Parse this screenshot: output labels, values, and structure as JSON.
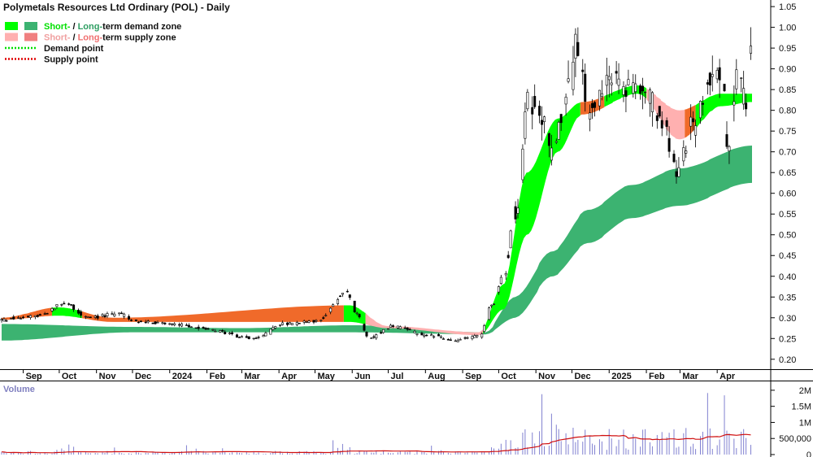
{
  "chart_data": {
    "type": "candlestick",
    "title": "Polymetals Resources Ltd Ordinary (POL) - Daily",
    "legend": {
      "placement": "top-left",
      "items": [
        {
          "parts": [
            {
              "text": "Short-",
              "color": "#00e000"
            },
            {
              "text": " / ",
              "color": "#111111"
            },
            {
              "text": "Long-",
              "color": "#2e9e62"
            },
            {
              "text": "term demand zone",
              "color": "#111111"
            }
          ],
          "swatches": [
            "#00ff00",
            "#3cb371"
          ]
        },
        {
          "parts": [
            {
              "text": "Short-",
              "color": "#f0a0a0"
            },
            {
              "text": " / ",
              "color": "#111111"
            },
            {
              "text": "Long-",
              "color": "#f07070"
            },
            {
              "text": "term supply zone",
              "color": "#111111"
            }
          ],
          "swatches": [
            "#ffb0b0",
            "#f08080"
          ]
        },
        {
          "parts": [
            {
              "text": "Demand point",
              "color": "#111111"
            }
          ],
          "line_color": "#00e000"
        },
        {
          "parts": [
            {
              "text": "Supply point",
              "color": "#111111"
            }
          ],
          "line_color": "#e00000"
        }
      ]
    },
    "price_axis": {
      "position": "right",
      "range": [
        0.18,
        1.06
      ],
      "ticks": [
        "0.20",
        "0.25",
        "0.30",
        "0.35",
        "0.40",
        "0.45",
        "0.50",
        "0.55",
        "0.60",
        "0.65",
        "0.70",
        "0.75",
        "0.80",
        "0.85",
        "0.90",
        "0.95",
        "1.00",
        "1.05"
      ]
    },
    "x_axis": {
      "labels": [
        "Sep",
        "Oct",
        "Nov",
        "Dec",
        "2024",
        "Feb",
        "Mar",
        "Apr",
        "May",
        "Jun",
        "Jul",
        "Aug",
        "Sep",
        "Oct",
        "Nov",
        "Dec",
        "2025",
        "Feb",
        "Mar",
        "Apr"
      ]
    },
    "volume_panel": {
      "title": "Volume",
      "range": [
        0,
        2200000
      ],
      "ticks": [
        "0",
        "500,000",
        "1M",
        "1.5M",
        "2M"
      ],
      "bar_color": "#8080d0",
      "average_color": "#d01010"
    },
    "colors": {
      "candle": "#000000",
      "short_demand": "#00ff00",
      "long_demand": "#3cb371",
      "short_supply": "#ffb0b0",
      "short_supply_strong": "#f06a2a"
    },
    "anchors": [
      {
        "date": "2023-08-14",
        "close": 0.295
      },
      {
        "date": "2023-09-15",
        "close": 0.305
      },
      {
        "date": "2023-10-05",
        "close": 0.335
      },
      {
        "date": "2023-10-25",
        "close": 0.3
      },
      {
        "date": "2023-11-20",
        "close": 0.31
      },
      {
        "date": "2023-12-05",
        "close": 0.29
      },
      {
        "date": "2024-01-05",
        "close": 0.285
      },
      {
        "date": "2024-02-05",
        "close": 0.27
      },
      {
        "date": "2024-03-01",
        "close": 0.255
      },
      {
        "date": "2024-03-12",
        "close": 0.25
      },
      {
        "date": "2024-04-05",
        "close": 0.285
      },
      {
        "date": "2024-05-01",
        "close": 0.29
      },
      {
        "date": "2024-05-28",
        "close": 0.36
      },
      {
        "date": "2024-06-05",
        "close": 0.31
      },
      {
        "date": "2024-06-15",
        "close": 0.25
      },
      {
        "date": "2024-07-05",
        "close": 0.28
      },
      {
        "date": "2024-08-01",
        "close": 0.26
      },
      {
        "date": "2024-08-25",
        "close": 0.245
      },
      {
        "date": "2024-09-15",
        "close": 0.255
      },
      {
        "date": "2024-09-25",
        "close": 0.33
      },
      {
        "date": "2024-10-05",
        "close": 0.4
      },
      {
        "date": "2024-10-15",
        "close": 0.55
      },
      {
        "date": "2024-10-25",
        "close": 0.82
      },
      {
        "date": "2024-11-05",
        "close": 0.78
      },
      {
        "date": "2024-11-15",
        "close": 0.7
      },
      {
        "date": "2024-11-25",
        "close": 0.82
      },
      {
        "date": "2024-12-05",
        "close": 0.96
      },
      {
        "date": "2024-12-15",
        "close": 0.8
      },
      {
        "date": "2025-01-01",
        "close": 0.88
      },
      {
        "date": "2025-01-15",
        "close": 0.86
      },
      {
        "date": "2025-02-01",
        "close": 0.84
      },
      {
        "date": "2025-02-15",
        "close": 0.76
      },
      {
        "date": "2025-02-28",
        "close": 0.65
      },
      {
        "date": "2025-03-10",
        "close": 0.76
      },
      {
        "date": "2025-03-25",
        "close": 0.87
      },
      {
        "date": "2025-04-05",
        "close": 0.9
      },
      {
        "date": "2025-04-10",
        "close": 0.7
      },
      {
        "date": "2025-04-18",
        "close": 0.88
      },
      {
        "date": "2025-04-25",
        "close": 0.82
      },
      {
        "date": "2025-04-30",
        "close": 0.98
      }
    ],
    "long_term_zone": [
      {
        "date": "2023-08-14",
        "upper": 0.285,
        "lower": 0.245
      },
      {
        "date": "2023-12-01",
        "upper": 0.278,
        "lower": 0.265
      },
      {
        "date": "2024-03-01",
        "upper": 0.275,
        "lower": 0.265
      },
      {
        "date": "2024-06-01",
        "upper": 0.282,
        "lower": 0.265
      },
      {
        "date": "2024-09-20",
        "upper": 0.265,
        "lower": 0.26
      },
      {
        "date": "2024-10-15",
        "upper": 0.35,
        "lower": 0.3
      },
      {
        "date": "2024-11-15",
        "upper": 0.46,
        "lower": 0.4
      },
      {
        "date": "2024-12-15",
        "upper": 0.56,
        "lower": 0.48
      },
      {
        "date": "2025-01-20",
        "upper": 0.62,
        "lower": 0.54
      },
      {
        "date": "2025-03-01",
        "upper": 0.66,
        "lower": 0.57
      },
      {
        "date": "2025-04-30",
        "upper": 0.715,
        "lower": 0.625
      }
    ],
    "short_term_zone": [
      {
        "date": "2023-08-14",
        "upper": 0.3,
        "lower": 0.295
      },
      {
        "date": "2023-10-01",
        "upper": 0.325,
        "lower": 0.305
      },
      {
        "date": "2023-11-15",
        "upper": 0.3,
        "lower": 0.29
      },
      {
        "date": "2024-05-30",
        "upper": 0.33,
        "lower": 0.29
      },
      {
        "date": "2024-07-01",
        "upper": 0.28,
        "lower": 0.275
      },
      {
        "date": "2024-09-15",
        "upper": 0.265,
        "lower": 0.258
      },
      {
        "date": "2024-10-05",
        "upper": 0.38,
        "lower": 0.32
      },
      {
        "date": "2024-10-25",
        "upper": 0.65,
        "lower": 0.5
      },
      {
        "date": "2024-11-20",
        "upper": 0.78,
        "lower": 0.7
      },
      {
        "date": "2024-12-10",
        "upper": 0.82,
        "lower": 0.79
      },
      {
        "date": "2025-01-25",
        "upper": 0.86,
        "lower": 0.84
      },
      {
        "date": "2025-03-01",
        "upper": 0.8,
        "lower": 0.73
      },
      {
        "date": "2025-04-05",
        "upper": 0.84,
        "lower": 0.81
      },
      {
        "date": "2025-04-30",
        "upper": 0.84,
        "lower": 0.82
      }
    ]
  }
}
